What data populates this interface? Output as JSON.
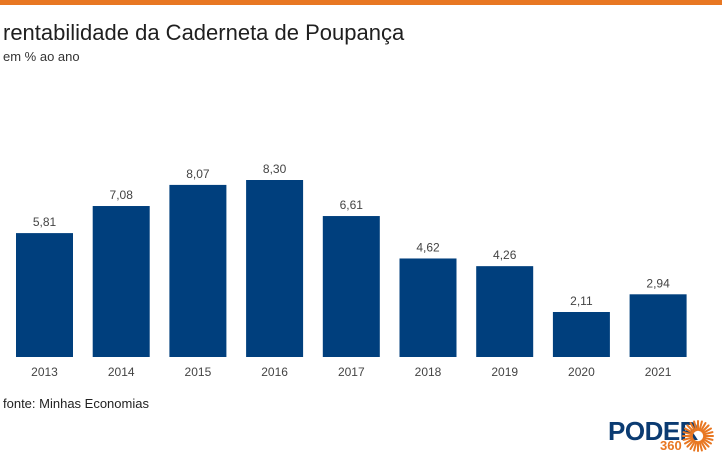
{
  "header": {
    "title": "rentabilidade da Caderneta de Poupança",
    "subtitle": "em % ao ano"
  },
  "footer": {
    "source": "fonte: Minhas Economias"
  },
  "logo": {
    "word": "PODER",
    "number": "360",
    "icon": "sun-icon"
  },
  "colors": {
    "accent": "#e87722",
    "bar": "#003f7d",
    "brand": "#0b3b72"
  },
  "chart_data": {
    "type": "bar",
    "title": "rentabilidade da Caderneta de Poupança",
    "subtitle": "em % ao ano",
    "categories": [
      "2013",
      "2014",
      "2015",
      "2016",
      "2017",
      "2018",
      "2019",
      "2020",
      "2021"
    ],
    "values": [
      5.81,
      7.08,
      8.07,
      8.3,
      6.61,
      4.62,
      4.26,
      2.11,
      2.94
    ],
    "value_labels": [
      "5,81",
      "7,08",
      "8,07",
      "8,30",
      "6,61",
      "4,62",
      "4,26",
      "2,11",
      "2,94"
    ],
    "ylim": [
      0,
      8.3
    ],
    "grid": false,
    "legend": "none"
  }
}
